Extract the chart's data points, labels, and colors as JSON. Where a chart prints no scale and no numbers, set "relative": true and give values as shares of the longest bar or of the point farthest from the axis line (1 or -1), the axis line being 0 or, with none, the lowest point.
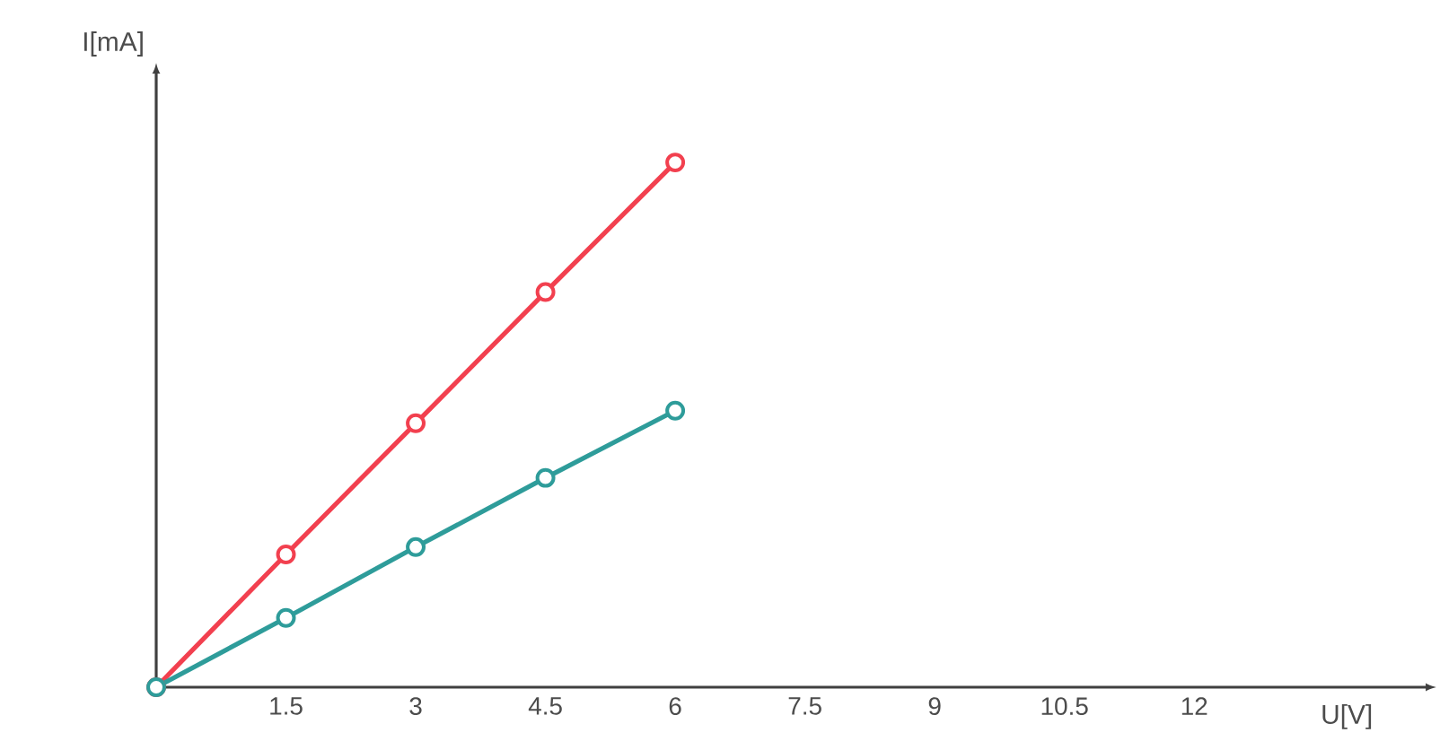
{
  "chart_data": {
    "type": "line",
    "relative": true,
    "xlabel": "U[V]",
    "ylabel": "I[mA]",
    "x": [
      0,
      1.5,
      3,
      4.5,
      6
    ],
    "xlim": [
      0,
      14.8
    ],
    "xticks": [
      1.5,
      3,
      4.5,
      6,
      7.5,
      9,
      10.5,
      12
    ],
    "marker": "circle",
    "line_style": "solid",
    "series": [
      {
        "color": "#f2404f",
        "values": [
          0,
          0.253,
          0.503,
          0.753,
          1
        ]
      },
      {
        "color": "#2e9c9a",
        "values": [
          0,
          0.132,
          0.267,
          0.399,
          0.527
        ]
      }
    ]
  }
}
